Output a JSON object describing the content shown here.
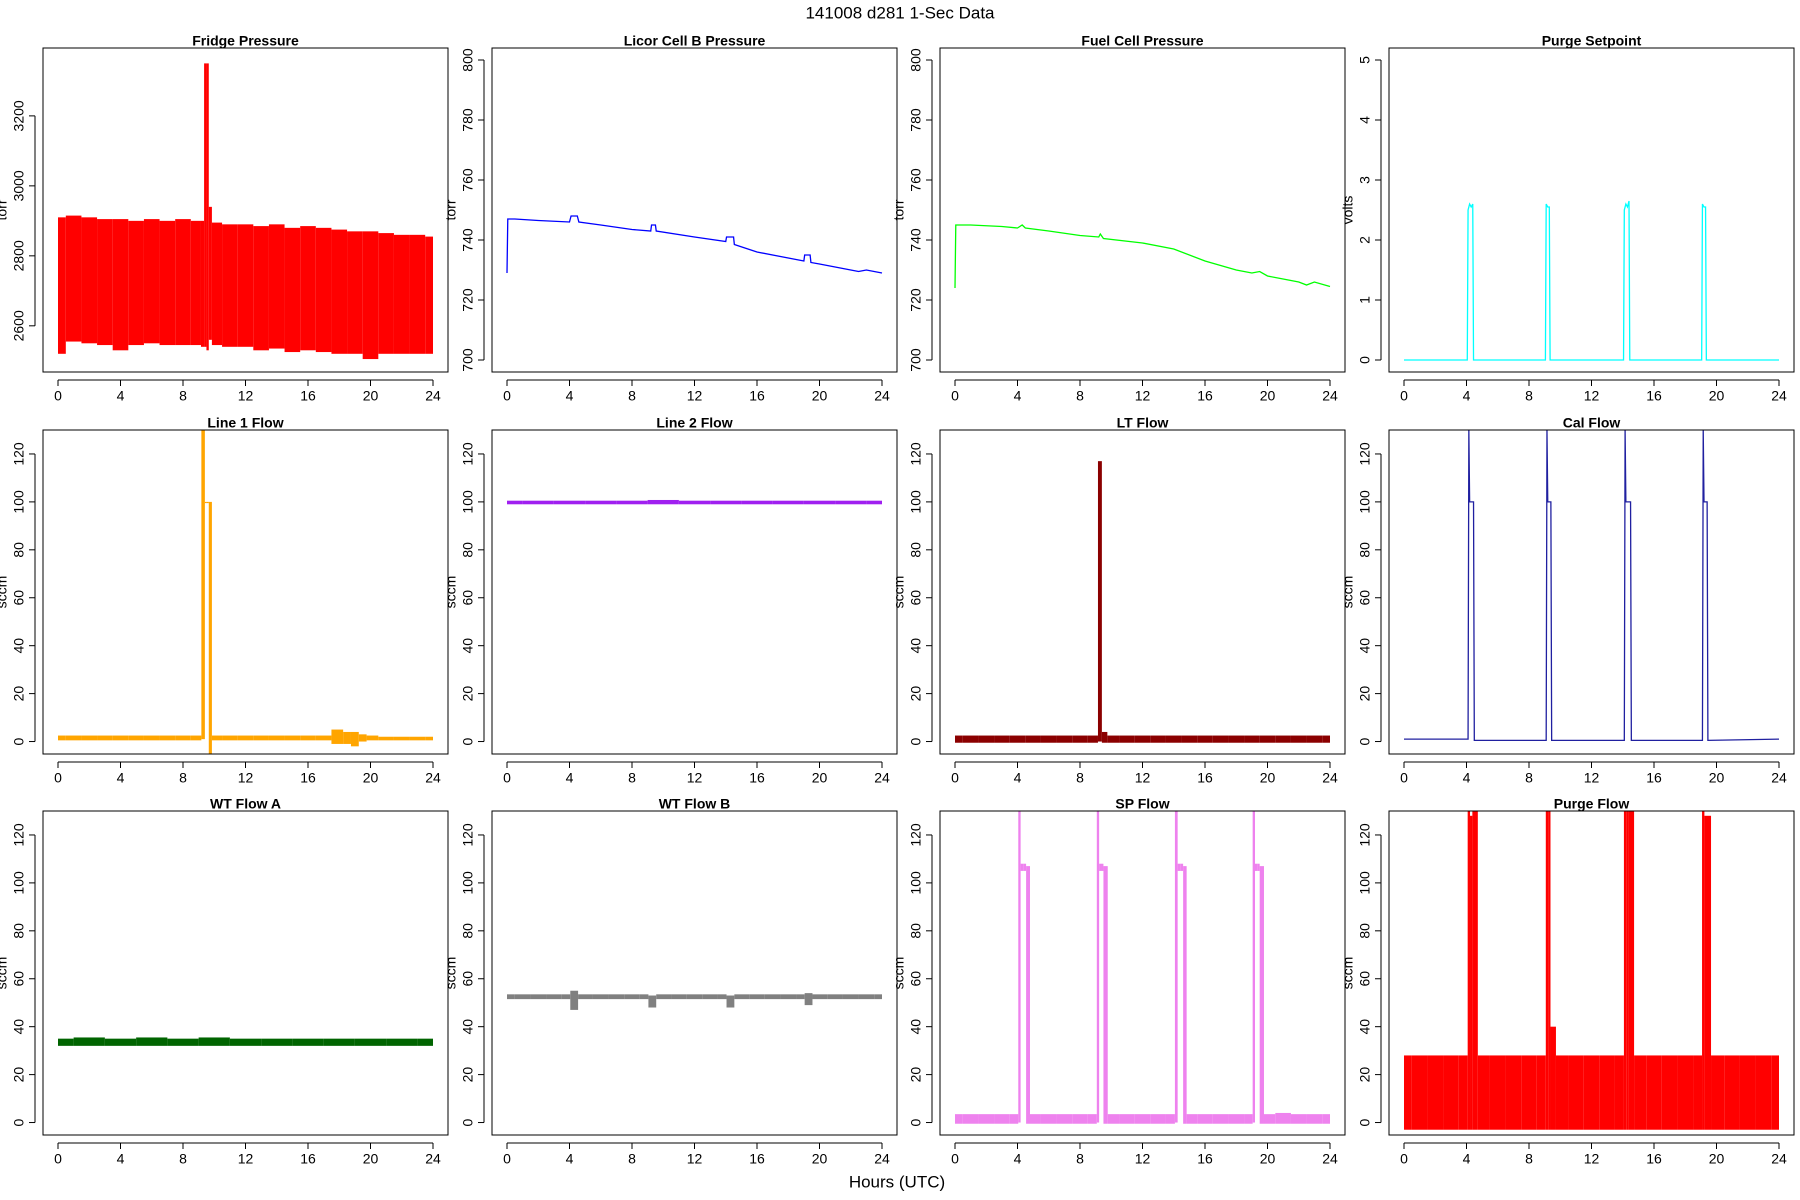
{
  "title": "141008   d281   1-Sec Data",
  "xlabel": "Hours (UTC)",
  "chart_data": [
    {
      "type": "range",
      "title": "Fridge Pressure",
      "ylabel": "torr",
      "color": "#ff0000",
      "x": [
        0,
        1,
        2,
        3,
        4,
        5,
        6,
        7,
        8,
        9,
        9.3,
        9.4,
        9.6,
        9.7,
        10,
        11,
        12,
        13,
        14,
        15,
        16,
        17,
        18,
        19,
        20,
        21,
        22,
        23,
        24
      ],
      "high": [
        2910,
        2915,
        2910,
        2905,
        2905,
        2900,
        2905,
        2900,
        2905,
        2900,
        2900,
        3350,
        3350,
        2940,
        2895,
        2890,
        2890,
        2885,
        2890,
        2880,
        2885,
        2880,
        2875,
        2870,
        2870,
        2865,
        2860,
        2860,
        2855
      ],
      "low": [
        2520,
        2555,
        2550,
        2545,
        2530,
        2545,
        2550,
        2545,
        2545,
        2545,
        2540,
        2540,
        2530,
        2560,
        2545,
        2540,
        2540,
        2530,
        2535,
        2525,
        2530,
        2525,
        2520,
        2520,
        2505,
        2520,
        2520,
        2520,
        2520
      ],
      "xlim": [
        -0.96,
        24.96
      ],
      "ylim": [
        2468,
        3394
      ],
      "xticks": [
        0,
        4,
        8,
        12,
        16,
        20,
        24
      ],
      "yticks": [
        2600,
        2800,
        3000,
        3200
      ]
    },
    {
      "type": "line",
      "title": "Licor Cell B Pressure",
      "ylabel": "torr",
      "color": "#0000ff",
      "x": [
        0,
        0.05,
        0.5,
        2,
        4,
        4.1,
        4.5,
        4.6,
        6,
        8,
        9.2,
        9.25,
        9.5,
        9.55,
        12,
        14,
        14.05,
        14.5,
        14.55,
        16,
        19,
        19.05,
        19.4,
        19.45,
        20,
        21,
        22,
        22.5,
        23,
        24
      ],
      "values": [
        729,
        747,
        747,
        746.5,
        746,
        748,
        748,
        746,
        745,
        743.5,
        743,
        745,
        745,
        743,
        741,
        739.5,
        741,
        741,
        738.5,
        736,
        733,
        735,
        735,
        732.5,
        732,
        731,
        730,
        729.5,
        730,
        729
      ],
      "xlim": [
        -0.96,
        24.96
      ],
      "ylim": [
        696,
        804
      ],
      "xticks": [
        0,
        4,
        8,
        12,
        16,
        20,
        24
      ],
      "yticks": [
        700,
        720,
        740,
        760,
        780,
        800
      ]
    },
    {
      "type": "line",
      "title": "Fuel Cell Pressure",
      "ylabel": "torr",
      "color": "#00ff00",
      "x": [
        0,
        0.05,
        1,
        3,
        4,
        4.3,
        4.5,
        6,
        8,
        9.2,
        9.3,
        9.5,
        12,
        14,
        16,
        18,
        19,
        19.5,
        20,
        21,
        22,
        22.5,
        23,
        24
      ],
      "values": [
        724,
        745,
        745,
        744.5,
        744,
        745,
        744,
        743,
        741.5,
        741,
        742,
        740.5,
        739,
        737,
        733,
        730,
        729,
        729.5,
        728,
        727,
        726,
        725,
        726,
        724.5
      ],
      "xlim": [
        -0.96,
        24.96
      ],
      "ylim": [
        696,
        804
      ],
      "xticks": [
        0,
        4,
        8,
        12,
        16,
        20,
        24
      ],
      "yticks": [
        700,
        720,
        740,
        760,
        780,
        800
      ]
    },
    {
      "type": "line",
      "title": "Purge Setpoint",
      "ylabel": "volts",
      "color": "#00ffff",
      "x": [
        0,
        4.05,
        4.1,
        4.2,
        4.3,
        4.4,
        4.45,
        9.05,
        9.1,
        9.2,
        9.3,
        9.35,
        14.05,
        14.1,
        14.2,
        14.3,
        14.4,
        14.45,
        19.05,
        19.1,
        19.2,
        19.3,
        19.35,
        24
      ],
      "values": [
        0,
        0,
        2.5,
        2.6,
        2.55,
        2.6,
        0,
        0,
        2.6,
        2.55,
        2.55,
        0,
        0,
        2.5,
        2.6,
        2.55,
        2.65,
        0,
        0,
        2.6,
        2.55,
        2.55,
        0,
        0
      ],
      "xlim": [
        -0.96,
        24.96
      ],
      "ylim": [
        -0.2,
        5.2
      ],
      "xticks": [
        0,
        4,
        8,
        12,
        16,
        20,
        24
      ],
      "yticks": [
        0,
        1,
        2,
        3,
        4,
        5
      ]
    },
    {
      "type": "range",
      "title": "Line 1 Flow",
      "ylabel": "sccm",
      "color": "#ffa500",
      "x": [
        0,
        1,
        2,
        3,
        4,
        5,
        6,
        7,
        8,
        9,
        9.35,
        9.45,
        9.6,
        9.7,
        10,
        11,
        12,
        13,
        14,
        15,
        16,
        17,
        18,
        18.5,
        19,
        19.5,
        20,
        21,
        22,
        23,
        24
      ],
      "high": [
        2.5,
        2.5,
        2.5,
        2.5,
        2.5,
        2.5,
        2.5,
        2.5,
        2.5,
        2.5,
        130,
        100,
        100,
        100,
        2.5,
        2.5,
        2.5,
        2.5,
        2.5,
        2.5,
        2.5,
        2.5,
        5,
        4,
        4,
        3,
        2.5,
        2,
        2,
        2,
        2
      ],
      "low": [
        0.5,
        0.5,
        0.5,
        0.5,
        0.5,
        0.5,
        0.5,
        0.5,
        0.5,
        0.5,
        1,
        100,
        100,
        -5,
        0.5,
        0.5,
        0.5,
        0.5,
        0.5,
        0.5,
        0.5,
        0.5,
        -1,
        -1,
        -2,
        0,
        0.5,
        0.5,
        0.5,
        0.5,
        0.5
      ],
      "xlim": [
        -0.96,
        24.96
      ],
      "ylim": [
        -5.2,
        130
      ],
      "xticks": [
        0,
        4,
        8,
        12,
        16,
        20,
        24
      ],
      "yticks": [
        0,
        20,
        40,
        60,
        80,
        100,
        120
      ]
    },
    {
      "type": "range",
      "title": "Line 2 Flow",
      "ylabel": "sccm",
      "color": "#a020f0",
      "x": [
        0,
        2,
        4,
        6,
        8,
        10,
        12,
        14,
        16,
        18,
        20,
        22,
        24
      ],
      "high": [
        100.5,
        100.5,
        100.5,
        100.5,
        100.5,
        100.8,
        100.5,
        100.5,
        100.5,
        100.5,
        100.5,
        100.5,
        100.5
      ],
      "low": [
        99,
        99,
        99,
        99,
        99,
        99,
        99,
        99,
        99,
        99,
        99,
        99,
        99
      ],
      "xlim": [
        -0.96,
        24.96
      ],
      "ylim": [
        -5.2,
        130
      ],
      "xticks": [
        0,
        4,
        8,
        12,
        16,
        20,
        24
      ],
      "yticks": [
        0,
        20,
        40,
        60,
        80,
        100,
        120
      ]
    },
    {
      "type": "range",
      "title": "LT Flow",
      "ylabel": "sccm",
      "color": "#8b0000",
      "x": [
        0,
        1,
        2,
        3,
        4,
        5,
        6,
        7,
        8,
        9,
        9.3,
        9.5,
        10,
        11,
        12,
        13,
        14,
        15,
        16,
        17,
        18,
        19,
        20,
        21,
        22,
        23,
        24
      ],
      "high": [
        2.5,
        2.5,
        2.5,
        2.5,
        2.5,
        2.5,
        2.5,
        2.5,
        2.5,
        2.5,
        117,
        4,
        2.5,
        2.5,
        2.5,
        2.5,
        2.5,
        2.5,
        2.5,
        2.5,
        2.5,
        2.5,
        2.5,
        2.5,
        2.5,
        2.5,
        2.5
      ],
      "low": [
        -0.5,
        -0.5,
        -0.5,
        -0.5,
        -0.5,
        -0.5,
        -0.5,
        -0.5,
        -0.5,
        -0.5,
        0,
        -0.5,
        -0.5,
        -0.5,
        -0.5,
        -0.5,
        -0.5,
        -0.5,
        -0.5,
        -0.5,
        -0.5,
        -0.5,
        -0.5,
        -0.5,
        -0.5,
        -0.5,
        -0.5
      ],
      "xlim": [
        -0.96,
        24.96
      ],
      "ylim": [
        -5.2,
        130
      ],
      "xticks": [
        0,
        4,
        8,
        12,
        16,
        20,
        24
      ],
      "yticks": [
        0,
        20,
        40,
        60,
        80,
        100,
        120
      ]
    },
    {
      "type": "line",
      "title": "Cal Flow",
      "ylabel": "sccm",
      "color": "#2020a0",
      "x": [
        0,
        4.1,
        4.15,
        4.2,
        4.45,
        4.5,
        9.1,
        9.15,
        9.2,
        9.4,
        9.45,
        14.1,
        14.15,
        14.2,
        14.5,
        14.55,
        19.1,
        19.15,
        19.2,
        19.4,
        19.45,
        24
      ],
      "values": [
        1,
        1,
        130,
        100,
        100,
        0.5,
        0.5,
        130,
        100,
        100,
        0.5,
        0.5,
        130,
        100,
        100,
        0.5,
        0.5,
        130,
        100,
        100,
        0.5,
        1
      ],
      "xlim": [
        -0.96,
        24.96
      ],
      "ylim": [
        -5.2,
        130
      ],
      "xticks": [
        0,
        4,
        8,
        12,
        16,
        20,
        24
      ],
      "yticks": [
        0,
        20,
        40,
        60,
        80,
        100,
        120
      ]
    },
    {
      "type": "range",
      "title": "WT Flow A",
      "ylabel": "sccm",
      "color": "#006400",
      "x": [
        0,
        2,
        4,
        6,
        8,
        10,
        12,
        14,
        16,
        18,
        20,
        22,
        24
      ],
      "high": [
        35,
        35.5,
        35,
        35.5,
        35,
        35.5,
        35,
        35,
        35,
        35,
        35,
        35,
        35
      ],
      "low": [
        32,
        32,
        32,
        32,
        32,
        32,
        32,
        32,
        32,
        32,
        32,
        32,
        32
      ],
      "xlim": [
        -0.96,
        24.96
      ],
      "ylim": [
        -5.2,
        130
      ],
      "xticks": [
        0,
        4,
        8,
        12,
        16,
        20,
        24
      ],
      "yticks": [
        0,
        20,
        40,
        60,
        80,
        100,
        120
      ]
    },
    {
      "type": "range",
      "title": "WT Flow B",
      "ylabel": "sccm",
      "color": "#808080",
      "x": [
        0,
        1,
        2,
        3,
        4,
        4.1,
        5,
        6,
        7,
        8,
        9,
        9.1,
        10,
        11,
        12,
        13,
        14,
        14.1,
        15,
        16,
        17,
        18,
        19,
        19.1,
        20,
        21,
        22,
        23,
        24
      ],
      "high": [
        53.5,
        53.5,
        53.5,
        53.5,
        53.5,
        55,
        53.5,
        53.5,
        53.5,
        53.5,
        53.5,
        53,
        53.5,
        53.5,
        53.5,
        53.5,
        53.5,
        53,
        53.5,
        53.5,
        53.5,
        53.5,
        53.5,
        54,
        53.5,
        53.5,
        53.5,
        53.5,
        53.5
      ],
      "low": [
        51.5,
        51.5,
        51.5,
        51.5,
        51.5,
        47,
        51.5,
        51.5,
        51.5,
        51.5,
        51.5,
        48,
        51.5,
        51.5,
        51.5,
        51.5,
        51.5,
        48,
        51.5,
        51.5,
        51.5,
        51.5,
        51.5,
        49,
        51.5,
        51.5,
        51.5,
        51.5,
        51.5
      ],
      "xlim": [
        -0.96,
        24.96
      ],
      "ylim": [
        -5.2,
        130
      ],
      "xticks": [
        0,
        4,
        8,
        12,
        16,
        20,
        24
      ],
      "yticks": [
        0,
        20,
        40,
        60,
        80,
        100,
        120
      ]
    },
    {
      "type": "range",
      "title": "SP Flow",
      "ylabel": "sccm",
      "color": "#ee82ee",
      "x": [
        0,
        1,
        2,
        3,
        4,
        4.1,
        4.3,
        4.5,
        4.6,
        5,
        6,
        7,
        8,
        9,
        9.15,
        9.3,
        9.45,
        9.55,
        10,
        11,
        12,
        13,
        14,
        14.15,
        14.35,
        14.55,
        14.65,
        15,
        16,
        17,
        18,
        19,
        19.1,
        19.3,
        19.45,
        19.55,
        20,
        21,
        22,
        23,
        24
      ],
      "high": [
        3.5,
        3.5,
        3.5,
        3.5,
        3.5,
        130,
        108,
        108,
        107,
        3.5,
        3.5,
        3.5,
        3.5,
        3.5,
        130,
        108,
        108,
        107,
        3.5,
        3.5,
        3.5,
        3.5,
        3.5,
        130,
        108,
        108,
        107,
        3.5,
        3.5,
        3.5,
        3.5,
        3.5,
        130,
        108,
        108,
        107,
        3.5,
        4,
        3.5,
        3.5,
        3.5
      ],
      "low": [
        -0.5,
        -0.5,
        -0.5,
        -0.5,
        -0.5,
        0,
        105,
        105,
        -0.5,
        -0.5,
        -0.5,
        -0.5,
        -0.5,
        -0.5,
        0,
        105,
        105,
        -0.5,
        -0.5,
        -0.5,
        -0.5,
        -0.5,
        -0.5,
        0,
        105,
        105,
        -0.5,
        -0.5,
        -0.5,
        -0.5,
        -0.5,
        -0.5,
        0,
        105,
        105,
        -0.5,
        -0.5,
        -0.5,
        -0.5,
        -0.5,
        -0.5
      ],
      "xlim": [
        -0.96,
        24.96
      ],
      "ylim": [
        -5.2,
        130
      ],
      "xticks": [
        0,
        4,
        8,
        12,
        16,
        20,
        24
      ],
      "yticks": [
        0,
        20,
        40,
        60,
        80,
        100,
        120
      ]
    },
    {
      "type": "range",
      "title": "Purge Flow",
      "ylabel": "sccm",
      "color": "#ff0000",
      "x": [
        0,
        1,
        2,
        3,
        4,
        4.15,
        4.3,
        4.45,
        5,
        6,
        7,
        8,
        9,
        9.15,
        9.3,
        9.45,
        10,
        11,
        12,
        13,
        14,
        14.15,
        14.3,
        14.45,
        15,
        16,
        17,
        18,
        19,
        19.15,
        19.3,
        20,
        21,
        22,
        23,
        24
      ],
      "high": [
        28,
        28,
        28,
        28,
        28,
        130,
        128,
        130,
        28,
        28,
        28,
        28,
        28,
        130,
        130,
        40,
        28,
        28,
        28,
        28,
        28,
        130,
        130,
        130,
        28,
        28,
        28,
        28,
        28,
        130,
        128,
        28,
        28,
        28,
        28,
        28
      ],
      "low": [
        -3,
        -3,
        -3,
        -3,
        -3,
        -3,
        -3,
        -3,
        -3,
        -3,
        -3,
        -3,
        -3,
        -3,
        -3,
        -3,
        -3,
        -3,
        -3,
        -3,
        -3,
        -3,
        -3,
        -3,
        -3,
        -3,
        -3,
        -3,
        -3,
        -3,
        -3,
        -3,
        -3,
        -3,
        -3,
        -3
      ],
      "xlim": [
        -0.96,
        24.96
      ],
      "ylim": [
        -5.2,
        130
      ],
      "xticks": [
        0,
        4,
        8,
        12,
        16,
        20,
        24
      ],
      "yticks": [
        0,
        20,
        40,
        60,
        80,
        100,
        120
      ]
    }
  ]
}
